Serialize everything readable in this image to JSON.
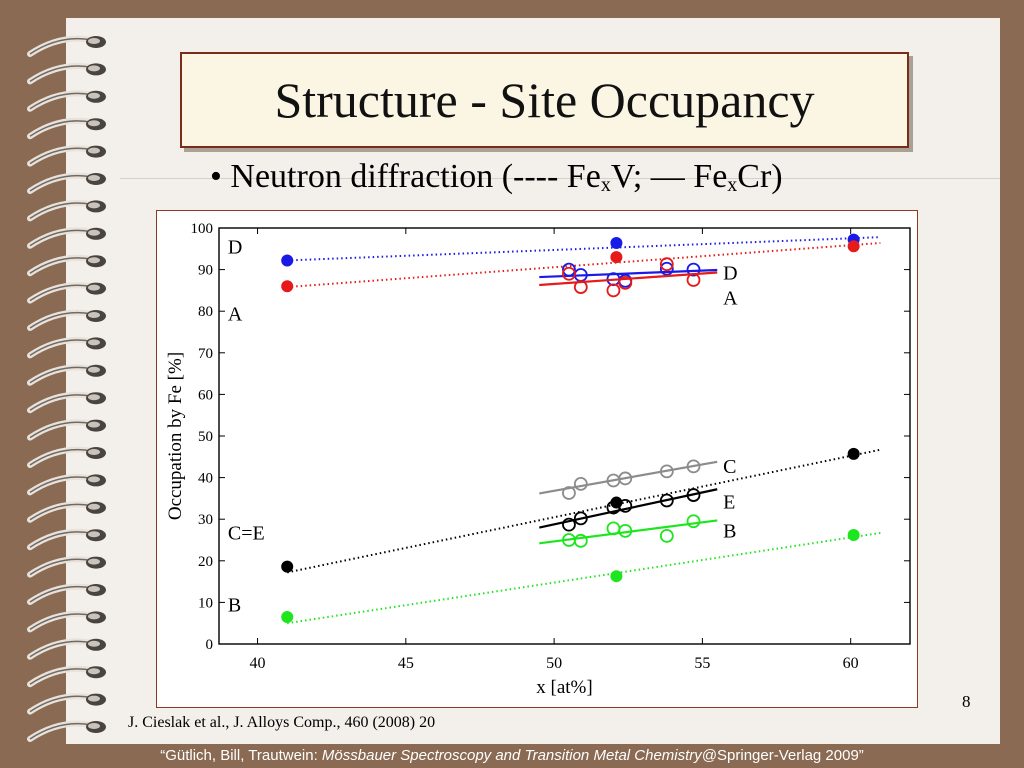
{
  "title": "Structure - Site Occupancy",
  "bullet": {
    "mark": "•",
    "lead": "Neutron diffraction (---- Fe",
    "sub1": "x",
    "mid": "V; — Fe",
    "sub2": "x",
    "tail": "Cr)"
  },
  "page_number": "8",
  "citation": "J. Cieslak et al., J. Alloys Comp., 460 (2008) 20",
  "footer": {
    "authors": "“Gütlich, Bill, Trautwein: ",
    "book": "Mössbauer Spectroscopy and Transition Metal Chemistry",
    "publisher": "@Springer-Verlag 2009”"
  },
  "colors": {
    "D": "#1a1ae6",
    "A": "#e61a1a",
    "C": "#8c8c8c",
    "E": "#000000",
    "B": "#1ee61e"
  },
  "chart_data": {
    "type": "scatter",
    "xlabel": "x [at%]",
    "ylabel": "Occupation by Fe [%]",
    "xlim": [
      38.7,
      62
    ],
    "ylim": [
      0,
      100
    ],
    "xticks": [
      40,
      45,
      50,
      55,
      60
    ],
    "yticks": [
      0,
      10,
      20,
      30,
      40,
      50,
      60,
      70,
      80,
      90,
      100
    ],
    "grid": false,
    "series": [
      {
        "id": "D",
        "alloy": "FexV",
        "marker": "filled",
        "line": "dotted",
        "color": "#1a1ae6",
        "points": [
          [
            41,
            92.2
          ],
          [
            52.1,
            96.4
          ],
          [
            60.1,
            97.2
          ]
        ],
        "fit": [
          [
            41,
            92.2
          ],
          [
            61,
            97.8
          ]
        ]
      },
      {
        "id": "A",
        "alloy": "FexV",
        "marker": "filled",
        "line": "dotted",
        "color": "#e61a1a",
        "points": [
          [
            41,
            86
          ],
          [
            52.1,
            93
          ],
          [
            60.1,
            95.6
          ]
        ],
        "fit": [
          [
            41,
            85.8
          ],
          [
            61,
            96.4
          ]
        ]
      },
      {
        "id": "CE",
        "alloy": "FexV",
        "marker": "filled",
        "line": "dotted",
        "color": "#000000",
        "points": [
          [
            41,
            18.6
          ],
          [
            52.1,
            34
          ],
          [
            60.1,
            45.7
          ]
        ],
        "fit": [
          [
            41,
            17.2
          ],
          [
            61,
            46.7
          ]
        ]
      },
      {
        "id": "B",
        "alloy": "FexV",
        "marker": "filled",
        "line": "dotted",
        "color": "#1ee61e",
        "points": [
          [
            41,
            6.5
          ],
          [
            52.1,
            16.3
          ],
          [
            60.1,
            26.2
          ]
        ],
        "fit": [
          [
            41,
            5
          ],
          [
            61,
            26.7
          ]
        ]
      },
      {
        "id": "D",
        "alloy": "FexCr",
        "marker": "open",
        "line": "solid",
        "color": "#1a1ae6",
        "points": [
          [
            50.5,
            90
          ],
          [
            50.9,
            88.7
          ],
          [
            52,
            87.7
          ],
          [
            52.4,
            87.3
          ],
          [
            53.8,
            90.2
          ],
          [
            54.7,
            90
          ]
        ],
        "fit": [
          [
            49.5,
            88.2
          ],
          [
            55.5,
            89.9
          ]
        ]
      },
      {
        "id": "A",
        "alloy": "FexCr",
        "marker": "open",
        "line": "solid",
        "color": "#e61a1a",
        "points": [
          [
            50.5,
            89
          ],
          [
            50.9,
            85.8
          ],
          [
            52,
            85
          ],
          [
            52.4,
            86.8
          ],
          [
            53.8,
            91.3
          ],
          [
            54.7,
            87.5
          ]
        ],
        "fit": [
          [
            49.5,
            86.3
          ],
          [
            55.5,
            89.3
          ]
        ]
      },
      {
        "id": "C",
        "alloy": "FexCr",
        "marker": "open",
        "line": "solid",
        "color": "#8c8c8c",
        "points": [
          [
            50.5,
            36.3
          ],
          [
            50.9,
            38.5
          ],
          [
            52,
            39.3
          ],
          [
            52.4,
            39.8
          ],
          [
            53.8,
            41.5
          ],
          [
            54.7,
            42.7
          ]
        ],
        "fit": [
          [
            49.5,
            36.2
          ],
          [
            55.5,
            43.8
          ]
        ]
      },
      {
        "id": "E",
        "alloy": "FexCr",
        "marker": "open",
        "line": "solid",
        "color": "#000000",
        "points": [
          [
            50.5,
            28.7
          ],
          [
            50.9,
            30.2
          ],
          [
            52,
            32.8
          ],
          [
            52.4,
            33.2
          ],
          [
            53.8,
            34.5
          ],
          [
            54.7,
            35.8
          ]
        ],
        "fit": [
          [
            49.5,
            28
          ],
          [
            55.5,
            37.2
          ]
        ]
      },
      {
        "id": "B",
        "alloy": "FexCr",
        "marker": "open",
        "line": "solid",
        "color": "#1ee61e",
        "points": [
          [
            50.5,
            25
          ],
          [
            50.9,
            24.8
          ],
          [
            52,
            27.8
          ],
          [
            52.4,
            27.2
          ],
          [
            53.8,
            26
          ],
          [
            54.7,
            29.5
          ]
        ],
        "fit": [
          [
            49.5,
            24.2
          ],
          [
            55.5,
            29.7
          ]
        ]
      }
    ],
    "annotations": [
      {
        "text": "D",
        "x": 39,
        "y": 95.5
      },
      {
        "text": "A",
        "x": 39,
        "y": 79.5
      },
      {
        "text": "C=E",
        "x": 39,
        "y": 26.8
      },
      {
        "text": "B",
        "x": 39,
        "y": 9.5
      },
      {
        "text": "D",
        "x": 55.7,
        "y": 89.3
      },
      {
        "text": "A",
        "x": 55.7,
        "y": 83.3
      },
      {
        "text": "C",
        "x": 55.7,
        "y": 42.8
      },
      {
        "text": "E",
        "x": 55.7,
        "y": 34.2
      },
      {
        "text": "B",
        "x": 55.7,
        "y": 27.3
      }
    ]
  }
}
